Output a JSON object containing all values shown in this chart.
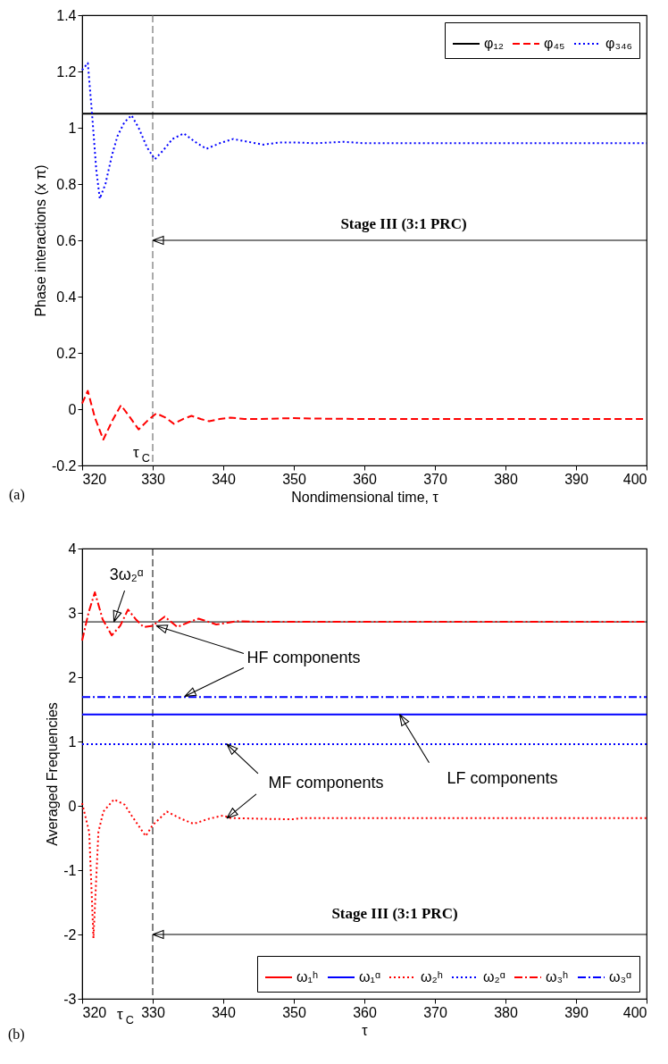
{
  "chart_data": [
    {
      "type": "line",
      "xlabel": "Nondimensional time, τ",
      "ylabel": "Phase interactions (x π)",
      "xlim": [
        320,
        400
      ],
      "xticks": [
        320,
        330,
        340,
        350,
        360,
        370,
        380,
        390,
        400
      ],
      "ylim": [
        -0.2,
        1.4
      ],
      "yticks": [
        -0.2,
        0,
        0.2,
        0.4,
        0.6,
        0.8,
        1,
        1.2,
        1.4
      ],
      "grid": false,
      "legend": "top right",
      "series": [
        {
          "name": "φ₁₂",
          "color": "#000000",
          "line_style": "solid",
          "x": [
            320,
            400
          ],
          "values": [
            1.05,
            1.05
          ]
        },
        {
          "name": "φ₄₅",
          "color": "#ff0000",
          "line_style": "dashed",
          "x": [
            320,
            320.8,
            321.8,
            323,
            324.3,
            325.5,
            326.8,
            328,
            329.3,
            330.5,
            331.8,
            333,
            334.3,
            335.5,
            336.8,
            338,
            339.5,
            341,
            343,
            345,
            348,
            350,
            355,
            360,
            370,
            380,
            390,
            400
          ],
          "values": [
            0.02,
            0.065,
            -0.03,
            -0.108,
            -0.04,
            0.014,
            -0.03,
            -0.072,
            -0.04,
            -0.015,
            -0.03,
            -0.052,
            -0.035,
            -0.024,
            -0.035,
            -0.043,
            -0.035,
            -0.03,
            -0.035,
            -0.035,
            -0.033,
            -0.032,
            -0.034,
            -0.035,
            -0.035,
            -0.035,
            -0.035,
            -0.035
          ]
        },
        {
          "name": "φ₃₄₆",
          "color": "#0000ff",
          "line_style": "dotted",
          "x": [
            320,
            320.8,
            321.4,
            322,
            322.5,
            323.3,
            324.2,
            325,
            326,
            327,
            328,
            329.2,
            330.3,
            331.5,
            332.8,
            334.4,
            336,
            337.6,
            339.5,
            341.4,
            343.5,
            345.7,
            348,
            350,
            353,
            357,
            360,
            370,
            380,
            390,
            400
          ],
          "values": [
            1.205,
            1.23,
            1.05,
            0.85,
            0.748,
            0.8,
            0.9,
            0.97,
            1.02,
            1.044,
            1.0,
            0.93,
            0.888,
            0.92,
            0.96,
            0.98,
            0.95,
            0.925,
            0.945,
            0.96,
            0.95,
            0.94,
            0.948,
            0.948,
            0.945,
            0.95,
            0.945,
            0.945,
            0.945,
            0.945,
            0.945
          ]
        }
      ],
      "ref_lines": [
        {
          "axis": "x",
          "value": 330,
          "label": "τ$_{C}$",
          "color": "#555555",
          "line_style": "dashed"
        }
      ],
      "annotations": [
        {
          "text": "Stage III (3:1 PRC)",
          "x": 330,
          "y": 0.6
        },
        "(a)"
      ]
    },
    {
      "type": "line",
      "xlabel": "τ",
      "ylabel": "Averaged Frequencies",
      "xlim": [
        320,
        400
      ],
      "xticks": [
        320,
        330,
        340,
        350,
        360,
        370,
        380,
        390,
        400
      ],
      "ylim": [
        -3,
        4
      ],
      "yticks": [
        -3,
        -2,
        -1,
        0,
        1,
        2,
        3,
        4
      ],
      "grid": false,
      "legend": "bottom right",
      "series": [
        {
          "name": "ω₁ʰ",
          "color": "#ff0000",
          "line_style": "solid"
        },
        {
          "name": "ω₁ᵅ",
          "color": "#0000ff",
          "line_style": "solid",
          "x": [
            320,
            400
          ],
          "values": [
            1.42,
            1.42
          ]
        },
        {
          "name": "ω₂ʰ",
          "color": "#ff0000",
          "line_style": "dotted",
          "x": [
            320,
            321,
            321.6,
            322.3,
            323,
            324.5,
            326,
            327,
            329,
            330,
            332,
            334,
            335.8,
            338,
            340,
            341,
            345,
            350,
            351,
            355,
            360,
            370,
            380,
            390,
            400
          ],
          "values": [
            0.04,
            -0.41,
            -2.06,
            -0.41,
            -0.09,
            0.1,
            0.02,
            -0.15,
            -0.47,
            -0.3,
            -0.09,
            -0.2,
            -0.28,
            -0.2,
            -0.15,
            -0.19,
            -0.2,
            -0.21,
            -0.19,
            -0.19,
            -0.19,
            -0.19,
            -0.19,
            -0.19,
            -0.19
          ]
        },
        {
          "name": "ω₂ᵅ",
          "color": "#0000ff",
          "line_style": "dotted",
          "x": [
            320,
            400
          ],
          "values": [
            0.96,
            0.96
          ]
        },
        {
          "name": "ω₃ʰ",
          "color": "#ff0000",
          "line_style": "dashdot",
          "x": [
            320,
            320.9,
            321.8,
            322.9,
            324.2,
            325.4,
            326.5,
            327.6,
            328.7,
            330,
            331.7,
            333.5,
            335,
            336.5,
            339,
            342,
            345,
            350,
            360,
            370,
            380,
            390,
            400
          ],
          "values": [
            2.57,
            3.0,
            3.32,
            2.9,
            2.65,
            2.8,
            3.05,
            2.9,
            2.78,
            2.8,
            2.94,
            2.78,
            2.85,
            2.91,
            2.82,
            2.87,
            2.86,
            2.86,
            2.86,
            2.86,
            2.86,
            2.86,
            2.86
          ]
        },
        {
          "name": "ω₃ᵅ",
          "color": "#0000ff",
          "line_style": "dashdot",
          "x": [
            320,
            400
          ],
          "values": [
            1.69,
            1.69
          ]
        }
      ],
      "ref_lines": [
        {
          "axis": "x",
          "value": 330,
          "label": "τ$_{C}$",
          "color": "#000000",
          "line_style": "dashed"
        },
        {
          "axis": "y",
          "value": 2.86,
          "label": null,
          "color": "#000000",
          "line_style": "solid"
        }
      ],
      "annotations": [
        {
          "text": "3ω₂ᵅ",
          "x": 324.5,
          "y": 2.86
        },
        {
          "text": "HF components",
          "x": 330.5,
          "y": 2.8
        },
        {
          "text": "MF components",
          "x": 340.5,
          "y": 0.96
        },
        {
          "text": "LF components",
          "x": 365,
          "y": 1.42
        },
        {
          "text": "Stage III (3:1 PRC)",
          "x": 330,
          "y": -2
        },
        "(b)"
      ]
    }
  ]
}
